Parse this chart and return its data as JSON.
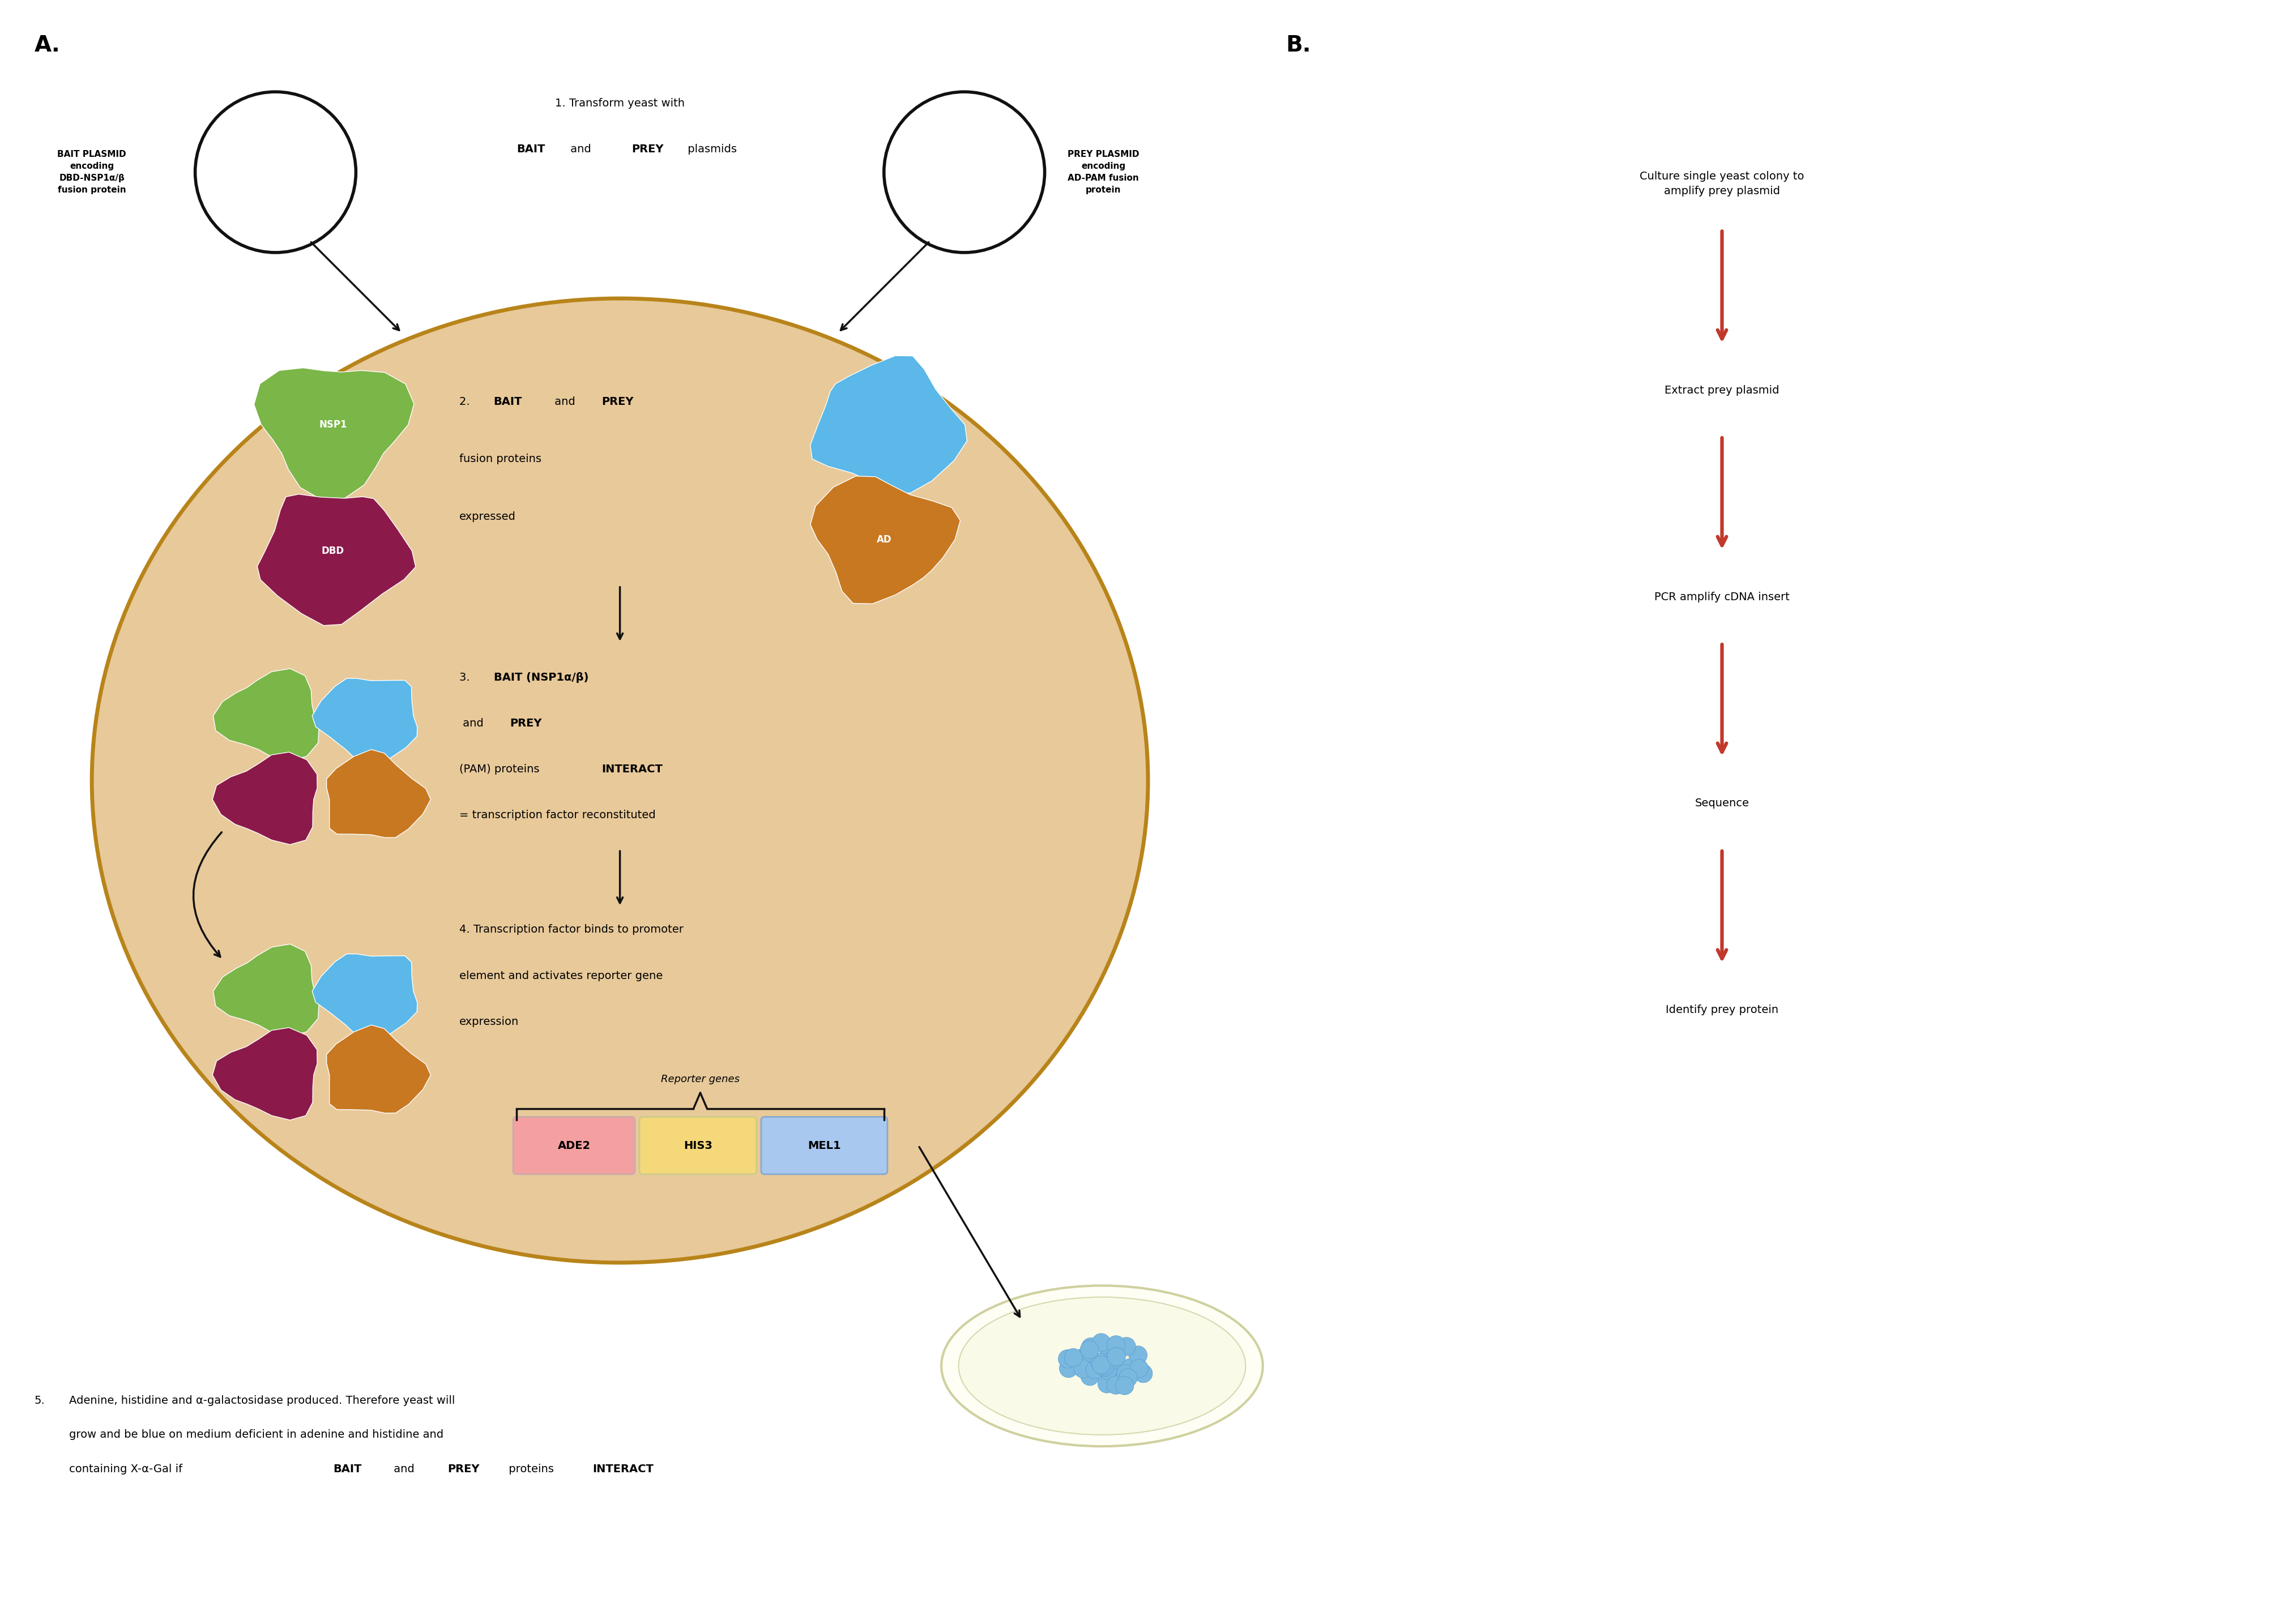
{
  "bg_color": "#ffffff",
  "cell_fill": "#e8c99a",
  "cell_edge": "#b8841a",
  "nsp1_color": "#7ab648",
  "dbd_color": "#8b1a4a",
  "ad_color": "#c87820",
  "blue_prot_color": "#5bb8e8",
  "ade2_color": "#f4a0a0",
  "his3_color": "#f5d87a",
  "mel1_color": "#a8c8f0",
  "arrow_color_red": "#c0392b",
  "arrow_color_black": "#1a1a1a",
  "bait_label": "BAIT PLASMID\nencoding\nDBD-NSP1α/β\nfusion protein",
  "prey_label": "PREY PLASMID\nencoding\nAD-PAM fusion\nprotein",
  "b_steps": [
    "Culture single yeast colony to\namplify prey plasmid",
    "Extract prey plasmid",
    "PCR amplify cDNA insert",
    "Sequence",
    "Identify prey protein"
  ]
}
